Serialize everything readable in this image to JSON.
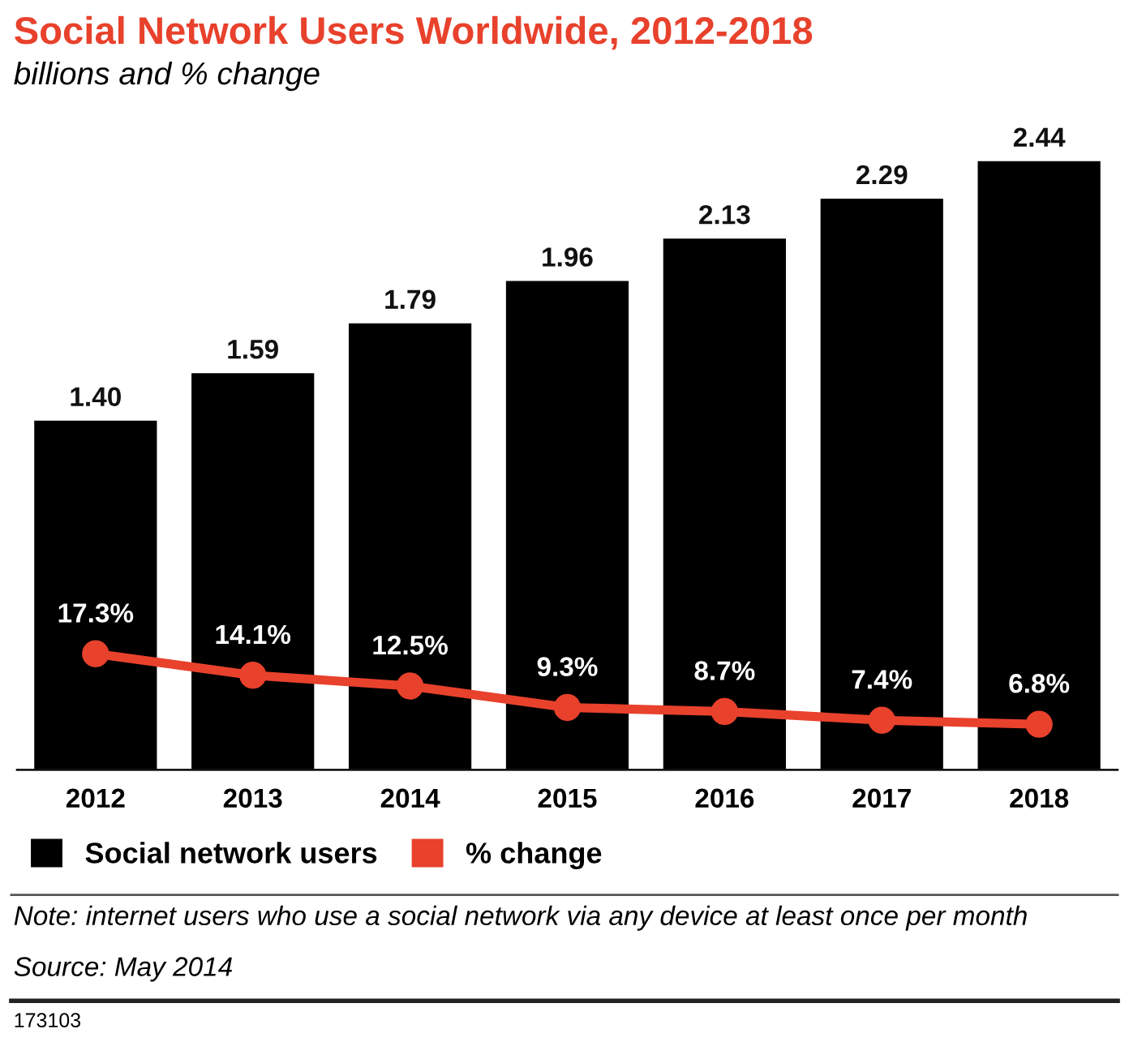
{
  "chart_data": {
    "type": "bar",
    "title": "Social Network Users Worldwide, 2012-2018",
    "subtitle": "billions and % change",
    "categories": [
      "2012",
      "2013",
      "2014",
      "2015",
      "2016",
      "2017",
      "2018"
    ],
    "series": [
      {
        "name": "Social network users",
        "color": "#000000",
        "values": [
          1.4,
          1.59,
          1.79,
          1.96,
          2.13,
          2.29,
          2.44
        ],
        "value_labels": [
          "1.40",
          "1.59",
          "1.79",
          "1.96",
          "2.13",
          "2.29",
          "2.44"
        ]
      },
      {
        "name": "% change",
        "type": "line",
        "axis": "y2",
        "color": "#e8412c",
        "values": [
          17.3,
          14.1,
          12.5,
          9.3,
          8.7,
          7.4,
          6.8
        ],
        "value_labels": [
          "17.3%",
          "14.1%",
          "12.5%",
          "9.3%",
          "8.7%",
          "7.4%",
          "6.8%"
        ]
      }
    ],
    "tick_labels": "x",
    "grid": false,
    "legend": "bottom",
    "marker": "circle",
    "line_style": "solid",
    "annotations": [
      "Note: internet users who use a social network via any device at least once per month",
      "Source: May 2014",
      "173103"
    ]
  }
}
